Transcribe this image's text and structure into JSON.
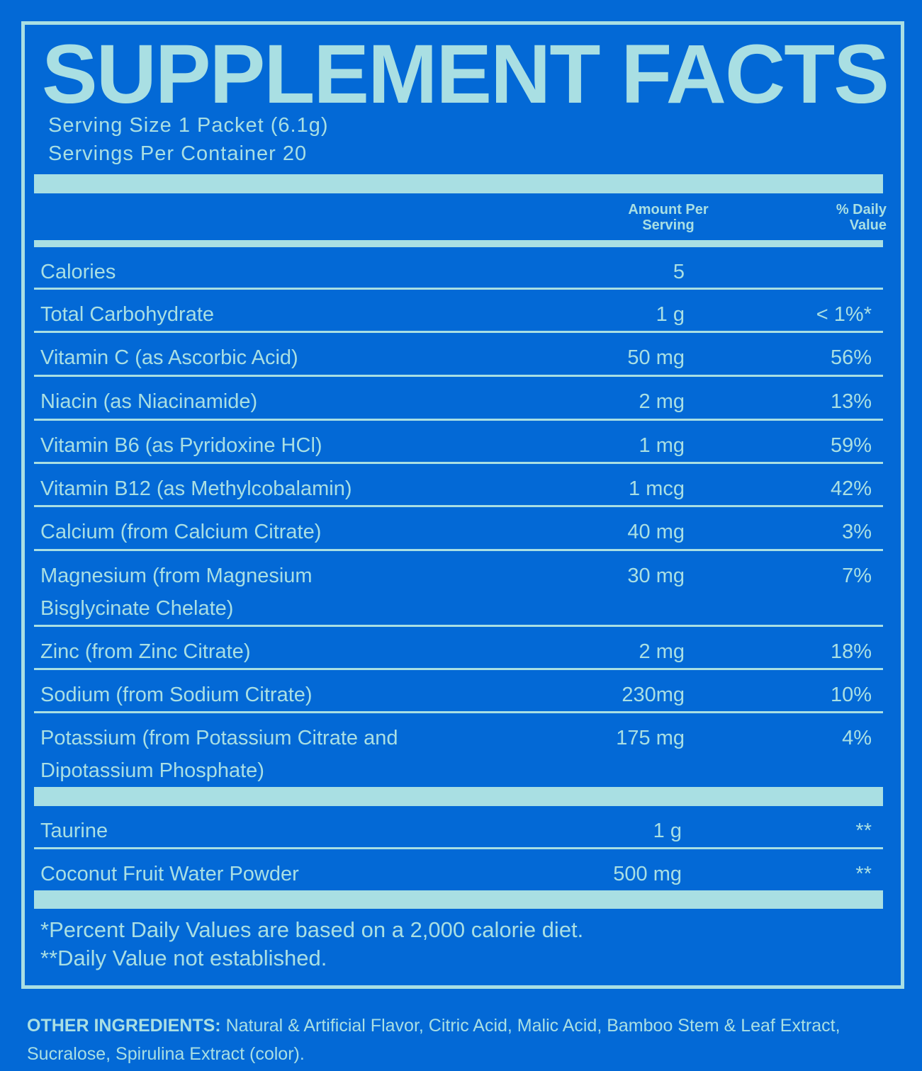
{
  "title": "SUPPLEMENT FACTS",
  "serving_size": "Serving Size 1 Packet (6.1g)",
  "servings_per_container": "Servings Per Container 20",
  "columns": {
    "amount": "Amount Per Serving",
    "amount_line1": "Amount Per",
    "amount_line2": "Serving",
    "dv_line1": "% Daily",
    "dv_line2": "Value"
  },
  "nutrients": [
    {
      "name": "Calories",
      "amount": "5",
      "dv": ""
    },
    {
      "name": "Total Carbohydrate",
      "amount": "1 g",
      "dv": "< 1%*"
    },
    {
      "name": "Vitamin C (as Ascorbic Acid)",
      "amount": "50 mg",
      "dv": "56%"
    },
    {
      "name": "Niacin (as Niacinamide)",
      "amount": "2 mg",
      "dv": "13%"
    },
    {
      "name": "Vitamin B6 (as Pyridoxine HCl)",
      "amount": "1 mg",
      "dv": "59%"
    },
    {
      "name": "Vitamin B12 (as Methylcobalamin)",
      "amount": "1 mcg",
      "dv": "42%"
    },
    {
      "name": "Calcium (from Calcium Citrate)",
      "amount": "40 mg",
      "dv": "3%"
    },
    {
      "name_line1": "Magnesium (from Magnesium",
      "name_line2": "Bisglycinate Chelate)",
      "amount": "30 mg",
      "dv": "7%"
    },
    {
      "name": "Zinc (from Zinc Citrate)",
      "amount": "2 mg",
      "dv": "18%"
    },
    {
      "name": "Sodium (from Sodium Citrate)",
      "amount": "230mg",
      "dv": "10%"
    },
    {
      "name_line1": "Potassium (from Potassium Citrate and",
      "name_line2": "Dipotassium Phosphate)",
      "amount": "175 mg",
      "dv": "4%"
    }
  ],
  "other_nutrients": [
    {
      "name": "Taurine",
      "amount": "1 g",
      "dv": "**"
    },
    {
      "name": "Coconut Fruit Water Powder",
      "amount": "500 mg",
      "dv": "**"
    }
  ],
  "footnotes": {
    "percent": "*Percent Daily Values are based on a 2,000 calorie diet.",
    "not_established": "**Daily Value not established."
  },
  "other_ingredients": {
    "label": "OTHER INGREDIENTS:",
    "text": " Natural & Artificial Flavor, Citric Acid, Malic Acid, Bamboo Stem & Leaf Extract, Sucralose, Spirulina Extract (color)."
  },
  "colors": {
    "background": "#0369d6",
    "accent": "#a9dfe3"
  }
}
